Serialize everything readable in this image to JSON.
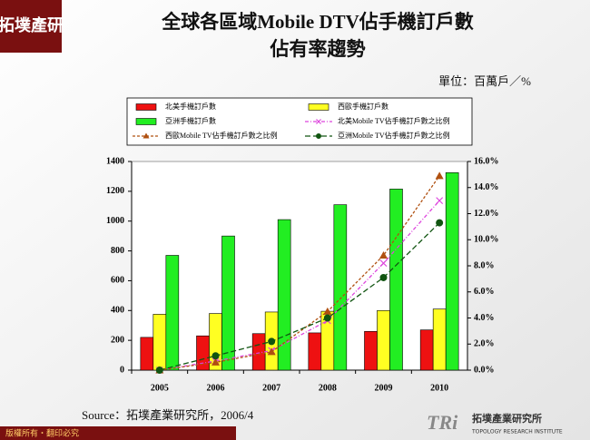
{
  "page": {
    "logo": "拓墣產研",
    "footer": "版權所有・翻印必究",
    "brand": "TRi",
    "brand_name": "拓墣產業研究所",
    "brand_english": "TOPOLOGY RESEARCH INSTITUTE"
  },
  "chart_data": {
    "type": "combo",
    "title": "全球各區域Mobile DTV佔手機訂戶數",
    "subtitle": "佔有率趨勢",
    "unit": "單位：百萬戶／%",
    "source": "Source：拓墣產業研究所，2006/4",
    "categories": [
      "2005",
      "2006",
      "2007",
      "2008",
      "2009",
      "2010"
    ],
    "ylim": [
      0,
      1400
    ],
    "yticks": [
      0,
      200,
      400,
      600,
      800,
      1000,
      1200,
      1400
    ],
    "y2lim": [
      0,
      16
    ],
    "y2ticks": [
      {
        "value": 0,
        "label": "0.0%"
      },
      {
        "value": 2,
        "label": "2.0%"
      },
      {
        "value": 4,
        "label": "4.0%"
      },
      {
        "value": 6,
        "label": "6.0%"
      },
      {
        "value": 8,
        "label": "8.0%"
      },
      {
        "value": 10,
        "label": "10.0%"
      },
      {
        "value": 12,
        "label": "12.0%"
      },
      {
        "value": 14,
        "label": "14.0%"
      },
      {
        "value": 16,
        "label": "16.0%"
      }
    ],
    "grid": false,
    "series": [
      {
        "name": "北美手機訂戶數",
        "type": "bar",
        "color": "#ee1111",
        "values": [
          220,
          230,
          245,
          250,
          260,
          270
        ]
      },
      {
        "name": "西歐手機訂戶數",
        "type": "bar",
        "color": "#ffff22",
        "values": [
          375,
          380,
          390,
          395,
          400,
          410
        ]
      },
      {
        "name": "亞洲手機訂戶數",
        "type": "bar",
        "color": "#22ee22",
        "values": [
          770,
          900,
          1010,
          1110,
          1215,
          1325
        ]
      },
      {
        "name": "北美Mobile TV佔手機訂戶數之比例",
        "type": "line",
        "axis": "y2",
        "color": "#dd44dd",
        "marker": "x",
        "dash": "4 2 1 2",
        "values": [
          0,
          0.7,
          1.5,
          3.8,
          8.2,
          13.0
        ]
      },
      {
        "name": "西歐Mobile TV佔手機訂戶數之比例",
        "type": "line",
        "axis": "y2",
        "color": "#b05010",
        "marker": "triangle",
        "dash": "3 2",
        "values": [
          0,
          0.6,
          1.4,
          4.5,
          8.8,
          14.9
        ]
      },
      {
        "name": "亞洲Mobile TV佔手機訂戶數之比例",
        "type": "line",
        "axis": "y2",
        "color": "#115511",
        "marker": "circle",
        "dash": "6 3",
        "values": [
          0,
          1.1,
          2.2,
          4.0,
          7.1,
          11.3
        ]
      }
    ]
  }
}
